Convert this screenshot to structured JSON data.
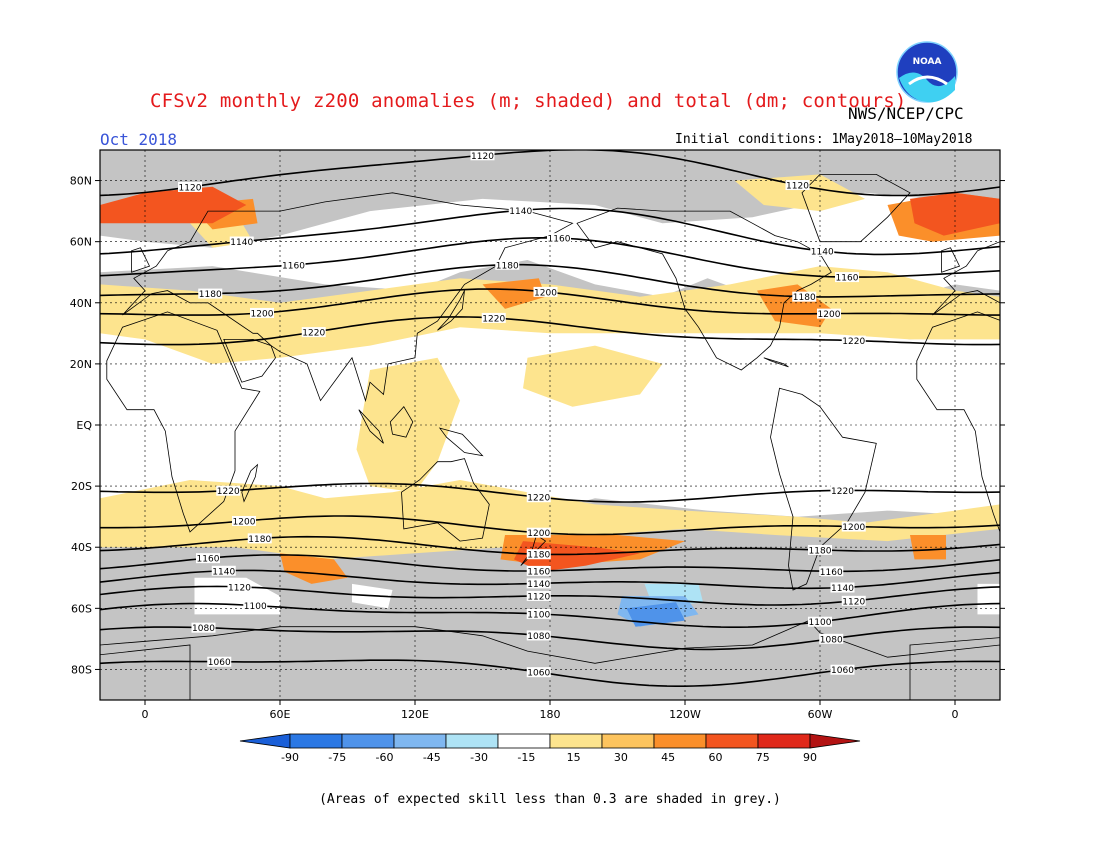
{
  "header": {
    "title": "CFSv2 monthly z200 anomalies (m; shaded) and total (dm; contours)",
    "agency": "NWS/NCEP/CPC",
    "month": "Oct 2018",
    "initial_conditions": "Initial conditions: 1May2018–10May2018",
    "logo_text": "NOAA"
  },
  "map": {
    "lat_labels": [
      "80N",
      "60N",
      "40N",
      "20N",
      "EQ",
      "20S",
      "40S",
      "60S",
      "80S"
    ],
    "lat_values": [
      80,
      60,
      40,
      20,
      0,
      -20,
      -40,
      -60,
      -80
    ],
    "lon_labels": [
      "0",
      "60E",
      "120E",
      "180",
      "120W",
      "60W",
      "0"
    ],
    "lon_values": [
      0,
      60,
      120,
      180,
      240,
      300,
      360
    ],
    "lon_range": [
      -20,
      380
    ],
    "lat_range": [
      -90,
      90
    ],
    "grey_meaning": "skill < 0.3",
    "contours": [
      {
        "value": 1120,
        "label": "1120",
        "base": 83,
        "amp": 7,
        "phase": 170
      },
      {
        "value": 1140,
        "label": "1140",
        "base": 63,
        "amp": 7,
        "phase": 170
      },
      {
        "value": 1160,
        "label": "1160",
        "base": 54,
        "amp": 6,
        "phase": 165
      },
      {
        "value": 1180,
        "label": "1180",
        "base": 46,
        "amp": 5,
        "phase": 160
      },
      {
        "value": 1200,
        "label": "1200",
        "base": 39,
        "amp": 4,
        "phase": 155
      },
      {
        "value": 1220,
        "label": "1220",
        "base": 30,
        "amp": 4,
        "phase": 150
      },
      {
        "value": 1220,
        "label": "1220",
        "base": -22,
        "amp": 2,
        "phase": 60
      },
      {
        "value": 1200,
        "label": "1200",
        "base": -33,
        "amp": 2,
        "phase": 60
      },
      {
        "value": 1180,
        "label": "1180",
        "base": -40,
        "amp": 2,
        "phase": 60
      },
      {
        "value": 1160,
        "label": "1160",
        "base": -46,
        "amp": 2,
        "phase": 60
      },
      {
        "value": 1140,
        "label": "1140",
        "base": -51,
        "amp": 2,
        "phase": 60
      },
      {
        "value": 1120,
        "label": "1120",
        "base": -56,
        "amp": 2,
        "phase": 60
      },
      {
        "value": 1100,
        "label": "1100",
        "base": -62,
        "amp": 3,
        "phase": 60
      },
      {
        "value": 1080,
        "label": "1080",
        "base": -69,
        "amp": 3,
        "phase": 60
      },
      {
        "value": 1060,
        "label": "1060",
        "base": -80,
        "amp": 4,
        "phase": 60
      }
    ]
  },
  "colorbar": {
    "labels": [
      "-90",
      "-75",
      "-60",
      "-45",
      "-30",
      "-15",
      "15",
      "30",
      "45",
      "60",
      "75",
      "90"
    ],
    "colors": [
      "#1a5fd8",
      "#2b78e4",
      "#4f93ea",
      "#7fb7f0",
      "#aee3f5",
      "#ffffff",
      "#fde48e",
      "#fdc45e",
      "#fb8f2a",
      "#f3551f",
      "#e0281a",
      "#b31313"
    ]
  },
  "footnote": "(Areas of expected skill less than 0.3 are shaded in grey.)"
}
